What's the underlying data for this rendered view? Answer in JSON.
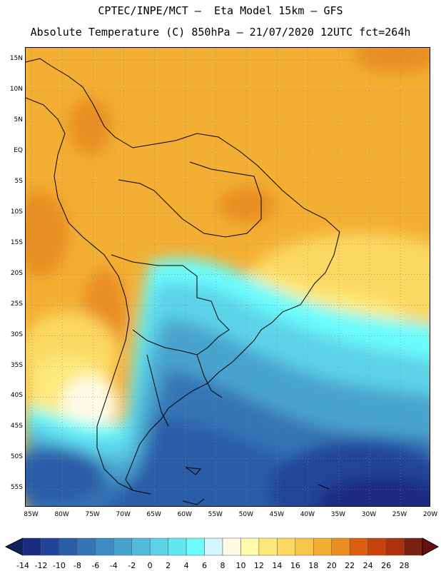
{
  "title_line1": "CPTEC/INPE/MCT –  Eta Model 15km – GFS",
  "title_line2": "Absolute Temperature (C) 850hPa – 21/07/2020 12UTC fct=264h",
  "map": {
    "lat_labels": [
      "15N",
      "10N",
      "5N",
      "EQ",
      "5S",
      "10S",
      "15S",
      "20S",
      "25S",
      "30S",
      "35S",
      "40S",
      "45S",
      "50S",
      "55S"
    ],
    "lon_labels": [
      "85W",
      "80W",
      "75W",
      "70W",
      "65W",
      "60W",
      "55W",
      "50W",
      "45W",
      "40W",
      "35W",
      "30W",
      "25W",
      "20W"
    ],
    "lat_range": [
      -58,
      17
    ],
    "lon_range": [
      -86,
      -20
    ]
  },
  "colorbar": {
    "labels": [
      "-14",
      "-12",
      "-10",
      "-8",
      "-6",
      "-4",
      "-2",
      "0",
      "2",
      "4",
      "6",
      "8",
      "10",
      "12",
      "14",
      "16",
      "18",
      "20",
      "22",
      "24",
      "26",
      "28"
    ],
    "colors": [
      "#1a2b80",
      "#21449a",
      "#2a5da8",
      "#3575b5",
      "#3f8cc2",
      "#48a3cf",
      "#52bbdc",
      "#5cd3e8",
      "#63e8f2",
      "#6cfcfc",
      "#d2f6ff",
      "#fffbe6",
      "#fffbaa",
      "#fde97a",
      "#fbd862",
      "#f7c54a",
      "#f3af33",
      "#e88e22",
      "#dc5e10",
      "#c8430c",
      "#ac310c",
      "#7a2010"
    ]
  }
}
